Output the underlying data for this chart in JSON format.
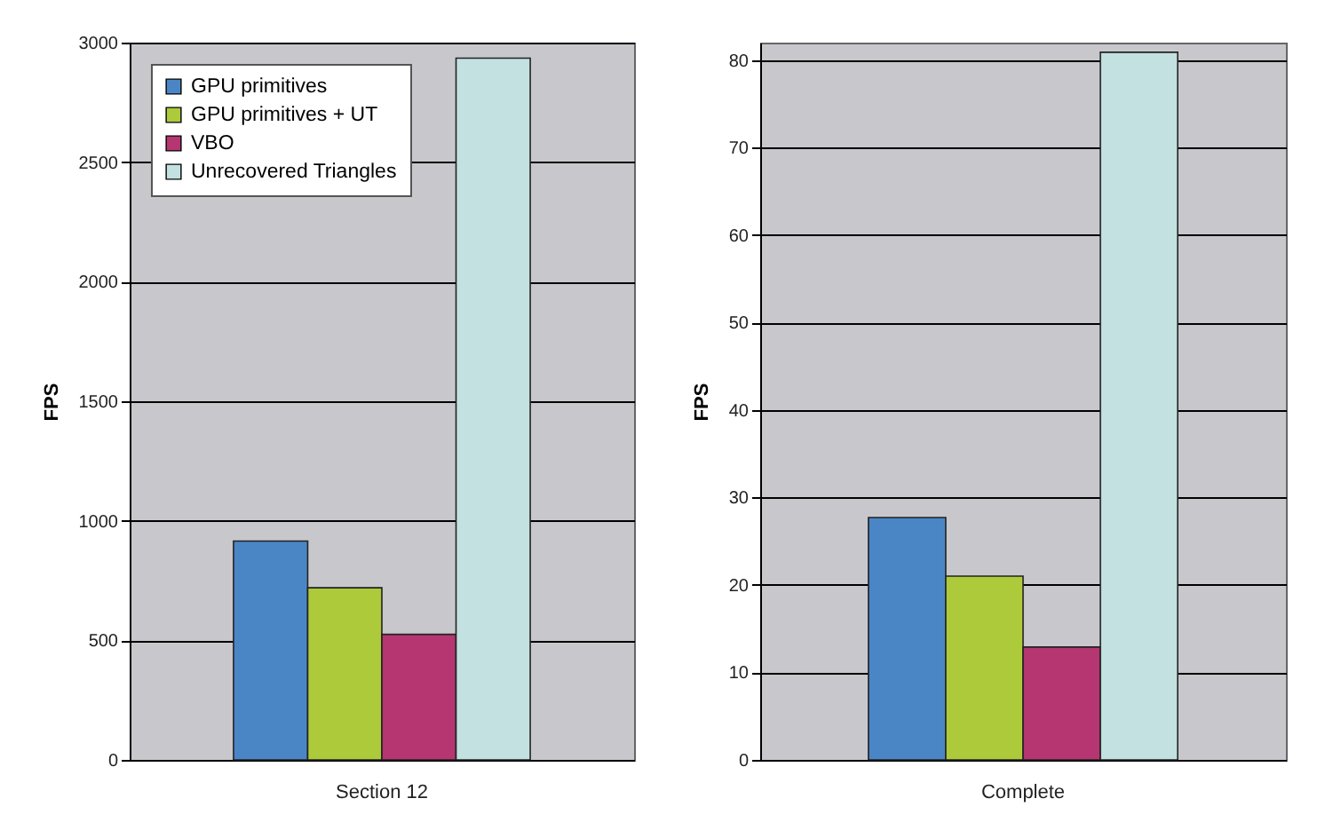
{
  "chart_data": [
    {
      "type": "bar",
      "categories": [
        "Section 12"
      ],
      "ylabel": "FPS",
      "ylim": [
        0,
        3000
      ],
      "yticks": [
        0,
        500,
        1000,
        1500,
        2000,
        2500,
        3000
      ],
      "grid": "y",
      "legend": "top left",
      "series": [
        {
          "name": "GPU primitives",
          "color": "#4a86c6",
          "values": [
            915
          ]
        },
        {
          "name": "GPU primitives + UT",
          "color": "#acca3a",
          "values": [
            720
          ]
        },
        {
          "name": "VBO",
          "color": "#b53670",
          "values": [
            525
          ]
        },
        {
          "name": "Unrecovered Triangles",
          "color": "#c2e1e0",
          "values": [
            2935
          ]
        }
      ]
    },
    {
      "type": "bar",
      "categories": [
        "Complete"
      ],
      "ylabel": "FPS",
      "ylim": [
        0,
        82
      ],
      "yticks": [
        0,
        10,
        20,
        30,
        40,
        50,
        60,
        70,
        80
      ],
      "grid": "y",
      "legend": false,
      "series": [
        {
          "color": "#4a86c6",
          "values": [
            27.7
          ]
        },
        {
          "color": "#acca3a",
          "values": [
            21.0
          ]
        },
        {
          "color": "#b53670",
          "values": [
            12.9
          ]
        },
        {
          "color": "#c2e1e0",
          "values": [
            80.9
          ]
        }
      ]
    }
  ]
}
